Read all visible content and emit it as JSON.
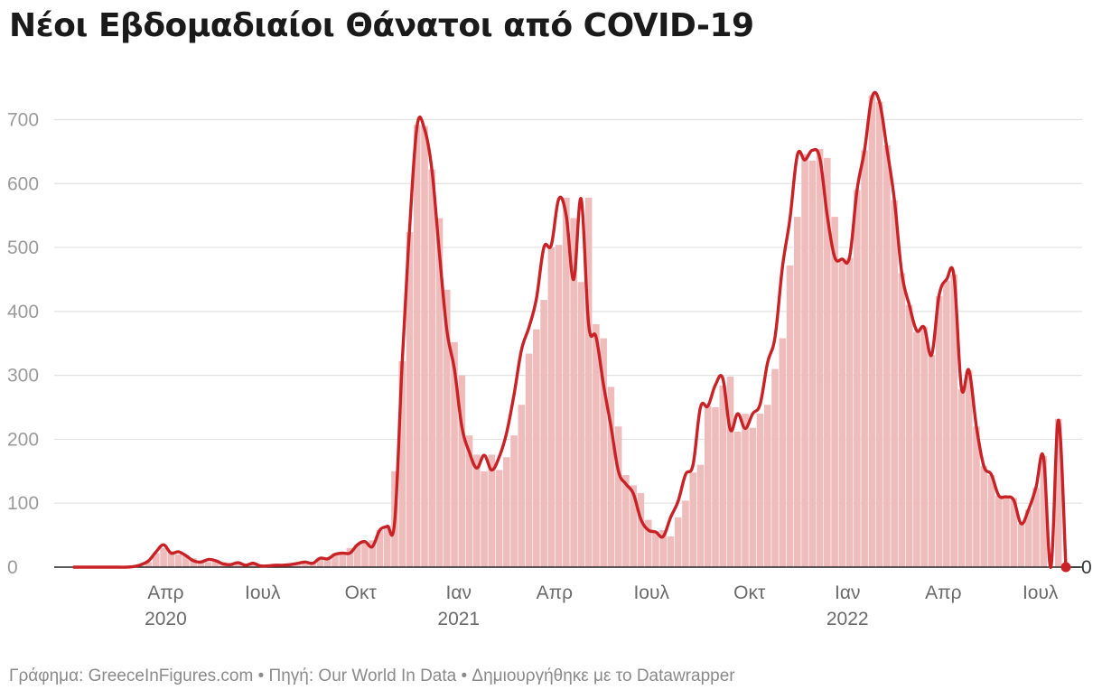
{
  "chart_data": {
    "type": "area",
    "title": "Νέοι Εβδομαδιαίοι Θάνατοι από COVID-19",
    "xlabel": "",
    "ylabel": "",
    "ylim": [
      0,
      760
    ],
    "xlim": [
      "2020-01-06",
      "2022-07-25"
    ],
    "grid": true,
    "y_ticks": [
      0,
      100,
      200,
      300,
      400,
      500,
      600,
      700
    ],
    "x_ticks": [
      {
        "date": "2020-04-01",
        "label": "Απρ",
        "year": "2020"
      },
      {
        "date": "2020-07-01",
        "label": "Ιουλ",
        "year": ""
      },
      {
        "date": "2020-10-01",
        "label": "Οκτ",
        "year": ""
      },
      {
        "date": "2021-01-01",
        "label": "Ιαν",
        "year": "2021"
      },
      {
        "date": "2021-04-01",
        "label": "Απρ",
        "year": ""
      },
      {
        "date": "2021-07-01",
        "label": "Ιουλ",
        "year": ""
      },
      {
        "date": "2021-10-01",
        "label": "Οκτ",
        "year": ""
      },
      {
        "date": "2022-01-01",
        "label": "Ιαν",
        "year": "2022"
      },
      {
        "date": "2022-04-01",
        "label": "Απρ",
        "year": ""
      },
      {
        "date": "2022-07-01",
        "label": "Ιουλ",
        "year": ""
      }
    ],
    "series": [
      {
        "name": "",
        "style": "bars",
        "color": "#efbcbc",
        "points": [
          [
            "2020-01-06",
            0
          ],
          [
            "2020-01-13",
            0
          ],
          [
            "2020-01-20",
            0
          ],
          [
            "2020-01-27",
            0
          ],
          [
            "2020-02-03",
            0
          ],
          [
            "2020-02-10",
            0
          ],
          [
            "2020-02-17",
            0
          ],
          [
            "2020-02-24",
            0
          ],
          [
            "2020-03-02",
            0
          ],
          [
            "2020-03-09",
            2
          ],
          [
            "2020-03-16",
            8
          ],
          [
            "2020-03-23",
            22
          ],
          [
            "2020-03-30",
            30
          ],
          [
            "2020-04-06",
            25
          ],
          [
            "2020-04-13",
            20
          ],
          [
            "2020-04-20",
            18
          ],
          [
            "2020-04-27",
            14
          ],
          [
            "2020-05-04",
            10
          ],
          [
            "2020-05-11",
            8
          ],
          [
            "2020-05-18",
            12
          ],
          [
            "2020-05-25",
            8
          ],
          [
            "2020-06-01",
            6
          ],
          [
            "2020-06-08",
            5
          ],
          [
            "2020-06-15",
            4
          ],
          [
            "2020-06-22",
            6
          ],
          [
            "2020-06-29",
            3
          ],
          [
            "2020-07-06",
            3
          ],
          [
            "2020-07-13",
            4
          ],
          [
            "2020-07-20",
            4
          ],
          [
            "2020-07-27",
            5
          ],
          [
            "2020-08-03",
            6
          ],
          [
            "2020-08-10",
            9
          ],
          [
            "2020-08-17",
            8
          ],
          [
            "2020-08-24",
            15
          ],
          [
            "2020-08-31",
            14
          ],
          [
            "2020-09-07",
            22
          ],
          [
            "2020-09-14",
            24
          ],
          [
            "2020-09-21",
            30
          ],
          [
            "2020-09-28",
            35
          ],
          [
            "2020-10-05",
            38
          ],
          [
            "2020-10-12",
            42
          ],
          [
            "2020-10-19",
            58
          ],
          [
            "2020-10-26",
            65
          ],
          [
            "2020-11-02",
            150
          ],
          [
            "2020-11-09",
            322
          ],
          [
            "2020-11-16",
            524
          ],
          [
            "2020-11-23",
            692
          ],
          [
            "2020-11-30",
            690
          ],
          [
            "2020-12-07",
            622
          ],
          [
            "2020-12-14",
            546
          ],
          [
            "2020-12-21",
            434
          ],
          [
            "2020-12-28",
            352
          ],
          [
            "2021-01-04",
            300
          ],
          [
            "2021-01-11",
            206
          ],
          [
            "2021-01-18",
            176
          ],
          [
            "2021-01-25",
            150
          ],
          [
            "2021-02-01",
            176
          ],
          [
            "2021-02-08",
            152
          ],
          [
            "2021-02-15",
            172
          ],
          [
            "2021-02-22",
            206
          ],
          [
            "2021-03-01",
            254
          ],
          [
            "2021-03-08",
            334
          ],
          [
            "2021-03-15",
            372
          ],
          [
            "2021-03-22",
            418
          ],
          [
            "2021-03-29",
            500
          ],
          [
            "2021-04-05",
            504
          ],
          [
            "2021-04-12",
            578
          ],
          [
            "2021-04-19",
            546
          ],
          [
            "2021-04-26",
            446
          ],
          [
            "2021-05-03",
            578
          ],
          [
            "2021-05-10",
            380
          ],
          [
            "2021-05-17",
            358
          ],
          [
            "2021-05-24",
            282
          ],
          [
            "2021-05-31",
            220
          ],
          [
            "2021-06-07",
            144
          ],
          [
            "2021-06-14",
            128
          ],
          [
            "2021-06-21",
            116
          ],
          [
            "2021-06-28",
            74
          ],
          [
            "2021-07-05",
            56
          ],
          [
            "2021-07-12",
            58
          ],
          [
            "2021-07-19",
            48
          ],
          [
            "2021-07-26",
            78
          ],
          [
            "2021-08-02",
            104
          ],
          [
            "2021-08-09",
            148
          ],
          [
            "2021-08-16",
            160
          ],
          [
            "2021-08-23",
            252
          ],
          [
            "2021-08-30",
            250
          ],
          [
            "2021-09-06",
            284
          ],
          [
            "2021-09-13",
            298
          ],
          [
            "2021-09-20",
            212
          ],
          [
            "2021-09-27",
            240
          ],
          [
            "2021-10-04",
            218
          ],
          [
            "2021-10-11",
            240
          ],
          [
            "2021-10-18",
            254
          ],
          [
            "2021-10-25",
            310
          ],
          [
            "2021-11-01",
            358
          ],
          [
            "2021-11-08",
            472
          ],
          [
            "2021-11-15",
            548
          ],
          [
            "2021-11-22",
            646
          ],
          [
            "2021-11-29",
            636
          ],
          [
            "2021-12-06",
            654
          ],
          [
            "2021-12-13",
            640
          ],
          [
            "2021-12-20",
            548
          ],
          [
            "2021-12-27",
            482
          ],
          [
            "2022-01-03",
            484
          ],
          [
            "2022-01-10",
            590
          ],
          [
            "2022-01-17",
            652
          ],
          [
            "2022-01-24",
            738
          ],
          [
            "2022-01-31",
            728
          ],
          [
            "2022-02-07",
            660
          ],
          [
            "2022-02-14",
            574
          ],
          [
            "2022-02-21",
            460
          ],
          [
            "2022-02-28",
            410
          ],
          [
            "2022-03-07",
            368
          ],
          [
            "2022-03-14",
            376
          ],
          [
            "2022-03-21",
            332
          ],
          [
            "2022-03-28",
            424
          ],
          [
            "2022-04-04",
            448
          ],
          [
            "2022-04-11",
            458
          ],
          [
            "2022-04-18",
            278
          ],
          [
            "2022-04-25",
            308
          ],
          [
            "2022-05-02",
            220
          ],
          [
            "2022-05-09",
            158
          ],
          [
            "2022-05-16",
            144
          ],
          [
            "2022-05-23",
            112
          ],
          [
            "2022-05-30",
            110
          ],
          [
            "2022-06-06",
            108
          ],
          [
            "2022-06-13",
            68
          ],
          [
            "2022-06-20",
            90
          ],
          [
            "2022-06-27",
            124
          ],
          [
            "2022-07-04",
            174
          ],
          [
            "2022-07-11",
            0
          ],
          [
            "2022-07-18",
            232
          ],
          [
            "2022-07-25",
            0
          ]
        ]
      },
      {
        "name": "",
        "style": "line",
        "color": "#c92226",
        "points": [
          [
            "2020-01-06",
            0
          ],
          [
            "2020-01-13",
            0
          ],
          [
            "2020-01-20",
            0
          ],
          [
            "2020-01-27",
            0
          ],
          [
            "2020-02-03",
            0
          ],
          [
            "2020-02-10",
            0
          ],
          [
            "2020-02-17",
            0
          ],
          [
            "2020-02-24",
            0
          ],
          [
            "2020-03-02",
            1
          ],
          [
            "2020-03-09",
            4
          ],
          [
            "2020-03-16",
            10
          ],
          [
            "2020-03-23",
            24
          ],
          [
            "2020-03-30",
            35
          ],
          [
            "2020-04-06",
            22
          ],
          [
            "2020-04-13",
            24
          ],
          [
            "2020-04-20",
            18
          ],
          [
            "2020-04-27",
            10
          ],
          [
            "2020-05-04",
            8
          ],
          [
            "2020-05-11",
            12
          ],
          [
            "2020-05-18",
            10
          ],
          [
            "2020-05-25",
            5
          ],
          [
            "2020-06-01",
            4
          ],
          [
            "2020-06-08",
            7
          ],
          [
            "2020-06-15",
            3
          ],
          [
            "2020-06-22",
            6
          ],
          [
            "2020-06-29",
            2
          ],
          [
            "2020-07-06",
            2
          ],
          [
            "2020-07-13",
            3
          ],
          [
            "2020-07-20",
            3
          ],
          [
            "2020-07-27",
            4
          ],
          [
            "2020-08-03",
            6
          ],
          [
            "2020-08-10",
            8
          ],
          [
            "2020-08-17",
            6
          ],
          [
            "2020-08-24",
            14
          ],
          [
            "2020-08-31",
            13
          ],
          [
            "2020-09-07",
            20
          ],
          [
            "2020-09-14",
            22
          ],
          [
            "2020-09-21",
            22
          ],
          [
            "2020-09-28",
            35
          ],
          [
            "2020-10-05",
            40
          ],
          [
            "2020-10-12",
            32
          ],
          [
            "2020-10-19",
            58
          ],
          [
            "2020-10-26",
            64
          ],
          [
            "2020-11-02",
            72
          ],
          [
            "2020-11-09",
            320
          ],
          [
            "2020-11-16",
            530
          ],
          [
            "2020-11-23",
            690
          ],
          [
            "2020-11-30",
            685
          ],
          [
            "2020-12-07",
            620
          ],
          [
            "2020-12-14",
            490
          ],
          [
            "2020-12-21",
            370
          ],
          [
            "2020-12-28",
            310
          ],
          [
            "2021-01-04",
            220
          ],
          [
            "2021-01-11",
            180
          ],
          [
            "2021-01-18",
            155
          ],
          [
            "2021-01-25",
            175
          ],
          [
            "2021-02-01",
            152
          ],
          [
            "2021-02-08",
            172
          ],
          [
            "2021-02-15",
            210
          ],
          [
            "2021-02-22",
            270
          ],
          [
            "2021-03-01",
            340
          ],
          [
            "2021-03-08",
            375
          ],
          [
            "2021-03-15",
            420
          ],
          [
            "2021-03-22",
            500
          ],
          [
            "2021-03-29",
            504
          ],
          [
            "2021-04-05",
            576
          ],
          [
            "2021-04-12",
            550
          ],
          [
            "2021-04-19",
            450
          ],
          [
            "2021-04-26",
            576
          ],
          [
            "2021-05-03",
            380
          ],
          [
            "2021-05-10",
            360
          ],
          [
            "2021-05-17",
            285
          ],
          [
            "2021-05-24",
            220
          ],
          [
            "2021-05-31",
            150
          ],
          [
            "2021-06-07",
            130
          ],
          [
            "2021-06-14",
            115
          ],
          [
            "2021-06-21",
            75
          ],
          [
            "2021-06-28",
            58
          ],
          [
            "2021-07-05",
            55
          ],
          [
            "2021-07-12",
            48
          ],
          [
            "2021-07-19",
            78
          ],
          [
            "2021-07-26",
            103
          ],
          [
            "2021-08-02",
            145
          ],
          [
            "2021-08-09",
            160
          ],
          [
            "2021-08-16",
            250
          ],
          [
            "2021-08-23",
            252
          ],
          [
            "2021-08-30",
            285
          ],
          [
            "2021-09-06",
            295
          ],
          [
            "2021-09-13",
            215
          ],
          [
            "2021-09-20",
            240
          ],
          [
            "2021-09-27",
            217
          ],
          [
            "2021-10-04",
            240
          ],
          [
            "2021-10-11",
            255
          ],
          [
            "2021-10-18",
            320
          ],
          [
            "2021-10-25",
            360
          ],
          [
            "2021-11-01",
            470
          ],
          [
            "2021-11-08",
            545
          ],
          [
            "2021-11-15",
            645
          ],
          [
            "2021-11-22",
            637
          ],
          [
            "2021-11-29",
            652
          ],
          [
            "2021-12-06",
            640
          ],
          [
            "2021-12-13",
            550
          ],
          [
            "2021-12-20",
            485
          ],
          [
            "2021-12-27",
            482
          ],
          [
            "2022-01-03",
            485
          ],
          [
            "2022-01-10",
            590
          ],
          [
            "2022-01-17",
            652
          ],
          [
            "2022-01-24",
            735
          ],
          [
            "2022-01-31",
            728
          ],
          [
            "2022-02-07",
            655
          ],
          [
            "2022-02-14",
            575
          ],
          [
            "2022-02-21",
            460
          ],
          [
            "2022-02-28",
            410
          ],
          [
            "2022-03-07",
            370
          ],
          [
            "2022-03-14",
            375
          ],
          [
            "2022-03-21",
            332
          ],
          [
            "2022-03-28",
            425
          ],
          [
            "2022-04-04",
            450
          ],
          [
            "2022-04-11",
            455
          ],
          [
            "2022-04-18",
            280
          ],
          [
            "2022-04-25",
            308
          ],
          [
            "2022-05-02",
            220
          ],
          [
            "2022-05-09",
            158
          ],
          [
            "2022-05-16",
            145
          ],
          [
            "2022-05-23",
            112
          ],
          [
            "2022-05-30",
            110
          ],
          [
            "2022-06-06",
            105
          ],
          [
            "2022-06-13",
            68
          ],
          [
            "2022-06-20",
            90
          ],
          [
            "2022-06-27",
            125
          ],
          [
            "2022-07-04",
            172
          ],
          [
            "2022-07-11",
            0
          ],
          [
            "2022-07-18",
            230
          ],
          [
            "2022-07-25",
            0
          ]
        ]
      }
    ],
    "end_label": "0"
  },
  "footer": {
    "credit": "Γράφημα: GreeceInFigures.com • Πηγή: Our World In Data • Δημιουργήθηκε με το Datawrapper"
  },
  "colors": {
    "bar_fill": "#efbcbc",
    "line": "#c92226",
    "gridline": "#e2e2e2",
    "axis": "#222222",
    "end_dot": "#c92226"
  }
}
